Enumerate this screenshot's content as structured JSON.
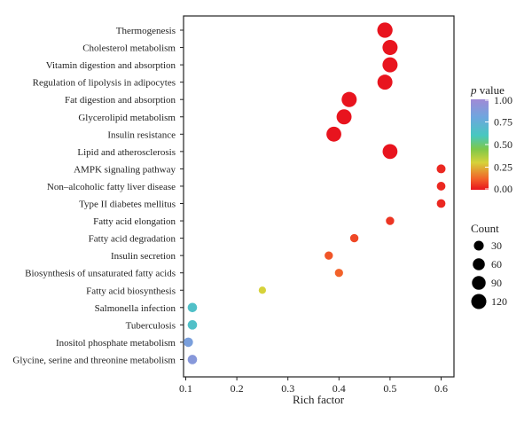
{
  "chart_data": {
    "type": "scatter",
    "title": "",
    "xlabel": "Rich factor",
    "ylabel": "",
    "xlim": [
      0.095,
      0.62
    ],
    "xticks": [
      "0.1",
      "0.2",
      "0.3",
      "0.4",
      "0.5",
      "0.6"
    ],
    "categories": [
      "Thermogenesis",
      "Cholesterol metabolism",
      "Vitamin digestion and absorption",
      "Regulation of lipolysis in adipocytes",
      "Fat digestion and absorption",
      "Glycerolipid metabolism",
      "Insulin resistance",
      "Lipid and atherosclerosis",
      "AMPK signaling pathway",
      "Non–alcoholic fatty liver disease",
      "Type II diabetes mellitus",
      "Fatty acid elongation",
      "Fatty acid degradation",
      "Insulin secretion",
      "Biosynthesis of unsaturated fatty acids",
      "Fatty acid biosynthesis",
      "Salmonella infection",
      "Tuberculosis",
      "Inositol phosphate metabolism",
      "Glycine, serine and threonine metabolism"
    ],
    "points": [
      {
        "term": "Thermogenesis",
        "rich_factor": 0.49,
        "count": 125,
        "p_value": 0.0
      },
      {
        "term": "Cholesterol metabolism",
        "rich_factor": 0.5,
        "count": 120,
        "p_value": 0.0
      },
      {
        "term": "Vitamin digestion and absorption",
        "rich_factor": 0.5,
        "count": 120,
        "p_value": 0.0
      },
      {
        "term": "Regulation of lipolysis in adipocytes",
        "rich_factor": 0.49,
        "count": 118,
        "p_value": 0.0
      },
      {
        "term": "Fat digestion and absorption",
        "rich_factor": 0.42,
        "count": 120,
        "p_value": 0.0
      },
      {
        "term": "Glycerolipid metabolism",
        "rich_factor": 0.41,
        "count": 118,
        "p_value": 0.0
      },
      {
        "term": "Insulin resistance",
        "rich_factor": 0.39,
        "count": 115,
        "p_value": 0.0
      },
      {
        "term": "Lipid and atherosclerosis",
        "rich_factor": 0.5,
        "count": 115,
        "p_value": 0.0
      },
      {
        "term": "AMPK signaling pathway",
        "rich_factor": 0.6,
        "count": 20,
        "p_value": 0.03
      },
      {
        "term": "Non–alcoholic fatty liver disease",
        "rich_factor": 0.6,
        "count": 18,
        "p_value": 0.03
      },
      {
        "term": "Type II diabetes mellitus",
        "rich_factor": 0.6,
        "count": 18,
        "p_value": 0.03
      },
      {
        "term": "Fatty acid elongation",
        "rich_factor": 0.5,
        "count": 15,
        "p_value": 0.05
      },
      {
        "term": "Fatty acid degradation",
        "rich_factor": 0.43,
        "count": 15,
        "p_value": 0.08
      },
      {
        "term": "Insulin secretion",
        "rich_factor": 0.38,
        "count": 15,
        "p_value": 0.1
      },
      {
        "term": "Biosynthesis of unsaturated fatty acids",
        "rich_factor": 0.4,
        "count": 14,
        "p_value": 0.12
      },
      {
        "term": "Fatty acid biosynthesis",
        "rich_factor": 0.25,
        "count": 8,
        "p_value": 0.3
      },
      {
        "term": "Salmonella infection",
        "rich_factor": 0.113,
        "count": 25,
        "p_value": 0.65
      },
      {
        "term": "Tuberculosis",
        "rich_factor": 0.113,
        "count": 25,
        "p_value": 0.65
      },
      {
        "term": "Inositol phosphate metabolism",
        "rich_factor": 0.105,
        "count": 25,
        "p_value": 0.85
      },
      {
        "term": "Glycine, serine and threonine metabolism",
        "rich_factor": 0.113,
        "count": 25,
        "p_value": 0.9
      }
    ],
    "color_legend": {
      "title": "p value",
      "ticks": [
        "1.00",
        "0.75",
        "0.50",
        "0.25",
        "0.00"
      ],
      "range": [
        0,
        1
      ],
      "colors": [
        "#e8141e",
        "#f2622a",
        "#d6d23a",
        "#7ec84a",
        "#47c8c0",
        "#6ea6de",
        "#a08ad6"
      ]
    },
    "size_legend": {
      "title": "Count",
      "values": [
        30,
        60,
        90,
        120
      ],
      "labels": [
        "30",
        "60",
        "90",
        "120"
      ]
    },
    "legend_position": "right",
    "grid": false
  }
}
